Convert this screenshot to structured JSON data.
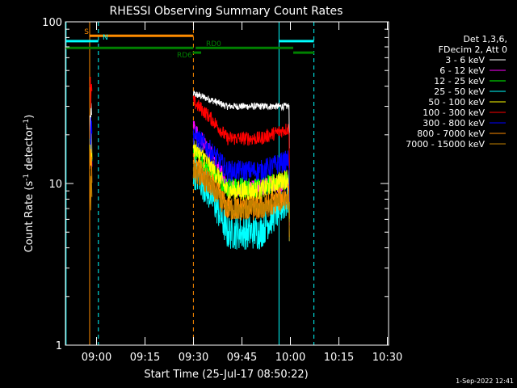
{
  "chart_data": {
    "type": "line",
    "title": "RHESSI Observing Summary Count Rates",
    "xlabel": "Start Time (25-Jul-17 08:50:22)",
    "ylabel_main": "Count Rate (s",
    "ylabel_sup1": "-1",
    "ylabel_mid": " detector",
    "ylabel_sup2": "-1",
    "ylabel_end": ")",
    "yscale": "log",
    "ylim": [
      1,
      100
    ],
    "xlim_minutes": [
      0,
      100
    ],
    "x_ticks": [
      {
        "label": "09:00",
        "minute": 9.63
      },
      {
        "label": "09:15",
        "minute": 24.63
      },
      {
        "label": "09:30",
        "minute": 39.63
      },
      {
        "label": "09:45",
        "minute": 54.63
      },
      {
        "label": "10:00",
        "minute": 69.63
      },
      {
        "label": "10:15",
        "minute": 84.63
      },
      {
        "label": "10:30",
        "minute": 99.63
      }
    ],
    "y_ticks": [
      {
        "label": "1",
        "value": 1
      },
      {
        "label": "10",
        "value": 10
      },
      {
        "label": "100",
        "value": 100
      }
    ],
    "legend_header": [
      "Det 1,3,6,",
      "FDecim 2, Att 0"
    ],
    "series": [
      {
        "name": "3 - 6 keV",
        "color": "#ffffff",
        "spike": 30,
        "start": 36,
        "valley": 30,
        "end": 30,
        "noise": 0.05
      },
      {
        "name": "6 - 12 keV",
        "color": "#ff00ff",
        "spike": 22,
        "start": 22,
        "valley": 9.5,
        "end": 10,
        "noise": 0.12
      },
      {
        "name": "12 - 25 keV",
        "color": "#00ff00",
        "spike": 20,
        "start": 15,
        "valley": 9.5,
        "end": 10.5,
        "noise": 0.15
      },
      {
        "name": "25 - 50 keV",
        "color": "#00ffff",
        "spike": 20,
        "start": 12,
        "valley": 5,
        "end": 8,
        "noise": 0.25
      },
      {
        "name": "50 - 100 keV",
        "color": "#ffff00",
        "spike": 22,
        "start": 17,
        "valley": 9,
        "end": 11,
        "noise": 0.15
      },
      {
        "name": "100 - 300 keV",
        "color": "#ff0000",
        "spike": 45,
        "start": 32,
        "valley": 19,
        "end": 22,
        "noise": 0.1
      },
      {
        "name": "300 - 800 keV",
        "color": "#0000ff",
        "spike": 26,
        "start": 20,
        "valley": 12,
        "end": 14,
        "noise": 0.15
      },
      {
        "name": "800 - 7000 keV",
        "color": "#ff8c00",
        "spike": 16,
        "start": 13,
        "valley": 7,
        "end": 8.5,
        "noise": 0.18
      },
      {
        "name": "7000 - 15000 keV",
        "color": "#c08000",
        "spike": 12,
        "start": 12,
        "valley": 7,
        "end": 8,
        "noise": 0.15
      }
    ],
    "data_windows": {
      "spike_minutes": [
        7.6,
        8.2
      ],
      "main_minutes": [
        39.6,
        69.3
      ]
    },
    "vertical_lines": [
      {
        "type": "cyan-solid",
        "minute": 0.2
      },
      {
        "type": "orange-solid",
        "minute": 7.5
      },
      {
        "type": "cyan-dashed",
        "minute": 10.2
      },
      {
        "type": "orange-dashed",
        "minute": 39.6
      },
      {
        "type": "cyan-solid",
        "minute": 66.1
      },
      {
        "type": "cyan-dashed",
        "minute": 76.9
      }
    ],
    "state_bars": [
      {
        "label": "S",
        "color": "#ff8c00",
        "segments": [
          [
            7.5,
            39.6
          ]
        ],
        "value": 82,
        "label_minute": 5.8
      },
      {
        "label": "N",
        "color": "#00ffff",
        "segments": [
          [
            0,
            10.2
          ],
          [
            66.1,
            76.9
          ]
        ],
        "value": 76,
        "label_minute": 11.5
      },
      {
        "label": "RD0",
        "color": "#008000",
        "segments": [
          [
            0,
            39.6
          ],
          [
            40.3,
            70.5
          ]
        ],
        "value": 69,
        "label_minute": 43.5
      },
      {
        "label": "RD6",
        "color": "#008000",
        "segments": [
          [
            39.4,
            42.0
          ],
          [
            70.5,
            77.0
          ]
        ],
        "value": 64.5,
        "label_minute": 34.5
      }
    ]
  },
  "footer": {
    "timestamp": "1-Sep-2022 12:41"
  }
}
